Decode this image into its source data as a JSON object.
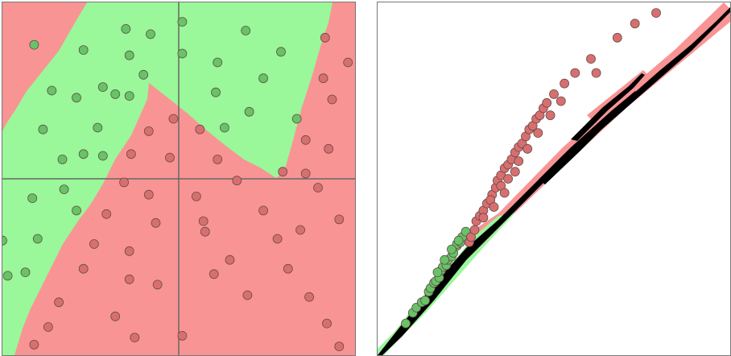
{
  "colors": {
    "red_region": "#f99494",
    "green_region": "#9af79a",
    "red_point": "#d86f6f",
    "green_point": "#66c466",
    "point_stroke": "#6a4a4a",
    "axis": "#666666",
    "manifold": "#000000"
  },
  "left_panel": {
    "green_points": [
      [
        -0.82,
        0.76
      ],
      [
        -0.3,
        0.85
      ],
      [
        -0.16,
        0.82
      ],
      [
        0.02,
        0.89
      ],
      [
        0.38,
        0.84
      ],
      [
        -0.54,
        0.73
      ],
      [
        -0.28,
        0.7
      ],
      [
        0.02,
        0.71
      ],
      [
        0.58,
        0.72
      ],
      [
        -0.2,
        0.59
      ],
      [
        0.22,
        0.66
      ],
      [
        0.48,
        0.57
      ],
      [
        -0.43,
        0.52
      ],
      [
        -0.72,
        0.5
      ],
      [
        -0.36,
        0.48
      ],
      [
        -0.28,
        0.47
      ],
      [
        -0.58,
        0.46
      ],
      [
        0.21,
        0.49
      ],
      [
        0.4,
        0.38
      ],
      [
        0.67,
        0.34
      ],
      [
        -0.77,
        0.28
      ],
      [
        -0.46,
        0.29
      ],
      [
        0.26,
        0.29
      ],
      [
        -0.54,
        0.14
      ],
      [
        -0.66,
        0.11
      ],
      [
        -0.43,
        0.13
      ],
      [
        -0.83,
        -0.11
      ],
      [
        -0.65,
        -0.06
      ],
      [
        -0.58,
        -0.18
      ],
      [
        -0.8,
        -0.34
      ],
      [
        -1.0,
        -0.35
      ],
      [
        -0.87,
        -0.53
      ],
      [
        -0.97,
        -0.55
      ]
    ],
    "red_points": [
      [
        0.83,
        0.8
      ],
      [
        0.96,
        0.66
      ],
      [
        0.82,
        0.57
      ],
      [
        0.87,
        0.45
      ],
      [
        -0.03,
        0.34
      ],
      [
        0.12,
        0.28
      ],
      [
        -0.17,
        0.27
      ],
      [
        0.72,
        0.22
      ],
      [
        0.85,
        0.17
      ],
      [
        -0.27,
        0.14
      ],
      [
        -0.05,
        0.12
      ],
      [
        0.22,
        0.11
      ],
      [
        0.59,
        0.04
      ],
      [
        0.72,
        0.03
      ],
      [
        0.33,
        -0.01
      ],
      [
        -0.31,
        -0.02
      ],
      [
        0.79,
        -0.05
      ],
      [
        -0.17,
        -0.09
      ],
      [
        0.1,
        -0.1
      ],
      [
        -0.41,
        -0.2
      ],
      [
        0.48,
        -0.18
      ],
      [
        0.91,
        -0.23
      ],
      [
        -0.13,
        -0.25
      ],
      [
        0.14,
        -0.24
      ],
      [
        0.69,
        -0.29
      ],
      [
        0.15,
        -0.3
      ],
      [
        -0.48,
        -0.37
      ],
      [
        0.56,
        -0.34
      ],
      [
        -0.28,
        -0.41
      ],
      [
        0.29,
        -0.46
      ],
      [
        -0.54,
        -0.51
      ],
      [
        0.62,
        -0.51
      ],
      [
        0.2,
        -0.54
      ],
      [
        -0.28,
        -0.57
      ],
      [
        -0.12,
        -0.6
      ],
      [
        0.39,
        -0.66
      ],
      [
        0.74,
        -0.67
      ],
      [
        -0.68,
        -0.7
      ],
      [
        -0.36,
        -0.78
      ],
      [
        0.84,
        -0.82
      ],
      [
        -0.74,
        -0.84
      ],
      [
        0.02,
        -0.89
      ],
      [
        -0.82,
        -0.94
      ],
      [
        -0.25,
        -0.9
      ],
      [
        0.91,
        -0.95
      ]
    ]
  },
  "right_panel": {
    "green_points": [
      [
        -0.84,
        -0.82
      ],
      [
        -0.8,
        -0.76
      ],
      [
        -0.78,
        -0.73
      ],
      [
        -0.75,
        -0.7
      ],
      [
        -0.73,
        -0.69
      ],
      [
        -0.71,
        -0.64
      ],
      [
        -0.7,
        -0.62
      ],
      [
        -0.68,
        -0.59
      ],
      [
        -0.67,
        -0.58
      ],
      [
        -0.65,
        -0.56
      ],
      [
        -0.64,
        -0.52
      ],
      [
        -0.63,
        -0.5
      ],
      [
        -0.61,
        -0.49
      ],
      [
        -0.6,
        -0.46
      ],
      [
        -0.58,
        -0.44
      ],
      [
        -0.57,
        -0.42
      ],
      [
        -0.55,
        -0.38
      ],
      [
        -0.55,
        -0.37
      ],
      [
        -0.53,
        -0.36
      ],
      [
        -0.52,
        -0.33
      ],
      [
        -0.5,
        -0.3
      ],
      [
        -0.62,
        -0.46
      ],
      [
        -0.66,
        -0.53
      ],
      [
        -0.58,
        -0.4
      ],
      [
        -0.54,
        -0.35
      ]
    ],
    "red_points": [
      [
        -0.48,
        -0.36
      ],
      [
        -0.47,
        -0.33
      ],
      [
        -0.45,
        -0.29
      ],
      [
        -0.44,
        -0.24
      ],
      [
        -0.42,
        -0.21
      ],
      [
        -0.4,
        -0.18
      ],
      [
        -0.38,
        -0.14
      ],
      [
        -0.35,
        -0.09
      ],
      [
        -0.33,
        -0.05
      ],
      [
        -0.32,
        -0.01
      ],
      [
        -0.3,
        0.02
      ],
      [
        -0.28,
        0.06
      ],
      [
        -0.26,
        0.08
      ],
      [
        -0.24,
        0.11
      ],
      [
        -0.22,
        0.15
      ],
      [
        -0.2,
        0.18
      ],
      [
        -0.18,
        0.2
      ],
      [
        -0.16,
        0.24
      ],
      [
        -0.14,
        0.28
      ],
      [
        -0.12,
        0.3
      ],
      [
        -0.1,
        0.34
      ],
      [
        -0.08,
        0.36
      ],
      [
        -0.06,
        0.4
      ],
      [
        -0.04,
        0.43
      ],
      [
        0.0,
        0.48
      ],
      [
        0.06,
        0.54
      ],
      [
        0.12,
        0.6
      ],
      [
        0.21,
        0.68
      ],
      [
        0.24,
        0.6
      ],
      [
        0.36,
        0.8
      ],
      [
        0.46,
        0.88
      ],
      [
        0.58,
        0.94
      ],
      [
        -0.36,
        -0.12
      ],
      [
        -0.3,
        -0.04
      ],
      [
        -0.26,
        0.0
      ],
      [
        -0.2,
        0.1
      ],
      [
        -0.15,
        0.17
      ],
      [
        -0.09,
        0.26
      ],
      [
        -0.02,
        0.36
      ],
      [
        0.04,
        0.44
      ],
      [
        -0.4,
        -0.22
      ],
      [
        -0.34,
        -0.16
      ],
      [
        -0.28,
        -0.08
      ],
      [
        -0.22,
        0.04
      ]
    ]
  }
}
